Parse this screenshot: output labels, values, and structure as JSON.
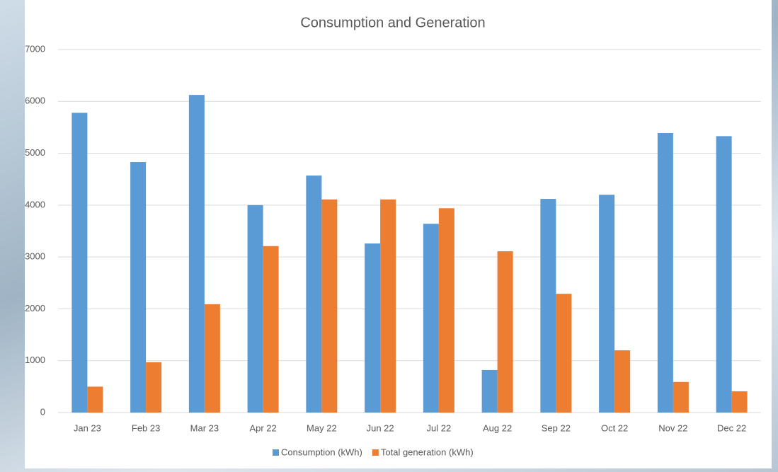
{
  "chart_data": {
    "type": "bar",
    "title": "Consumption and Generation",
    "categories": [
      "Jan 23",
      "Feb 23",
      "Mar 23",
      "Apr 22",
      "May 22",
      "Jun 22",
      "Jul 22",
      "Aug 22",
      "Sep 22",
      "Oct 22",
      "Nov 22",
      "Dec 22"
    ],
    "series": [
      {
        "name": "Consumption (kWh)",
        "color": "#5b9bd5",
        "values": [
          5780,
          4830,
          6125,
          4000,
          4570,
          3260,
          3640,
          820,
          4120,
          4200,
          5390,
          5330
        ]
      },
      {
        "name": "Total generation (kWh)",
        "color": "#ed7d31",
        "values": [
          500,
          970,
          2090,
          3210,
          4110,
          4110,
          3940,
          3110,
          2290,
          1200,
          590,
          410
        ]
      }
    ],
    "ylim": [
      0,
      7000
    ],
    "yticks": [
      0,
      1000,
      2000,
      3000,
      4000,
      5000,
      6000,
      7000
    ],
    "grid": true,
    "legend": "bottom"
  }
}
